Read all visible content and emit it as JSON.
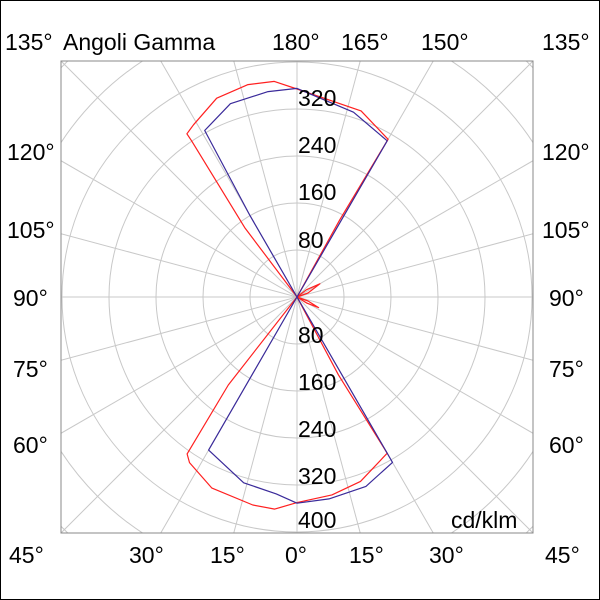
{
  "chart_data": {
    "type": "polar",
    "title": "Angoli Gamma",
    "unit_label": "cd/klm",
    "radial_ticks": [
      80,
      160,
      240,
      320,
      400
    ],
    "radial_range": [
      0,
      400
    ],
    "angle_step": 15,
    "grid": true,
    "top_labels": [
      "135°",
      "180°",
      "165°",
      "150°",
      "135°"
    ],
    "bottom_labels": [
      "45°",
      "30°",
      "15°",
      "0°",
      "15°",
      "30°",
      "45°"
    ],
    "left_labels": [
      "120°",
      "105°",
      "90°",
      "75°",
      "60°"
    ],
    "right_labels": [
      "120°",
      "105°",
      "90°",
      "75°",
      "60°"
    ],
    "radial_labels_upper": [
      "320",
      "240",
      "160",
      "80"
    ],
    "radial_labels_lower": [
      "80",
      "160",
      "240",
      "320",
      "400"
    ],
    "series": [
      {
        "color": "#ff2020",
        "points": [
          [
            0,
            0
          ],
          [
            -38,
            190
          ],
          [
            -35,
            326
          ],
          [
            -33,
            336
          ],
          [
            -24,
            356
          ],
          [
            -12,
            362
          ],
          [
            -6,
            363
          ],
          [
            0,
            350
          ],
          [
            10,
            342
          ],
          [
            19,
            332
          ],
          [
            30,
            307
          ],
          [
            28,
            150
          ],
          [
            0,
            0
          ],
          [
            58,
            20
          ],
          [
            64,
            41
          ],
          [
            70,
            20
          ],
          [
            0,
            0
          ],
          [
            110,
            20
          ],
          [
            120,
            45
          ],
          [
            128,
            20
          ],
          [
            0,
            0
          ],
          [
            151,
            150
          ],
          [
            150,
            310
          ],
          [
            161,
            335
          ],
          [
            180,
            354
          ],
          [
            -174,
            369
          ],
          [
            -167,
            371
          ],
          [
            -158,
            365
          ],
          [
            -149,
            342
          ],
          [
            -146,
            335
          ],
          [
            -146,
            321
          ],
          [
            -143,
            148
          ],
          [
            0,
            0
          ]
        ]
      },
      {
        "color": "#3a2a9a",
        "points": [
          [
            0,
            0
          ],
          [
            -30,
            150
          ],
          [
            -30,
            301
          ],
          [
            -16,
            329
          ],
          [
            -6,
            337
          ],
          [
            0,
            351
          ],
          [
            9,
            348
          ],
          [
            20,
            343
          ],
          [
            30,
            325
          ],
          [
            30,
            160
          ],
          [
            0,
            0
          ],
          [
            150,
            160
          ],
          [
            150,
            307
          ],
          [
            163,
            329
          ],
          [
            180,
            355
          ],
          [
            -172,
            353
          ],
          [
            -161,
            348
          ],
          [
            -151,
            324
          ],
          [
            -150,
            160
          ],
          [
            0,
            0
          ]
        ]
      }
    ]
  }
}
